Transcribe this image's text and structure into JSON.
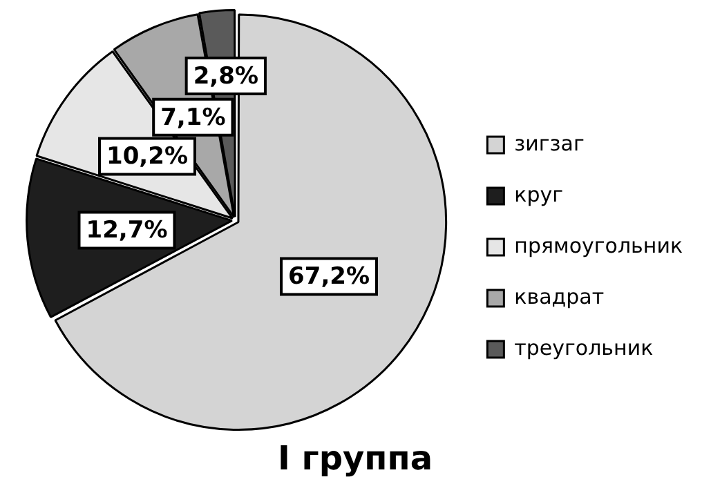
{
  "chart_data": {
    "type": "pie",
    "title": "I группа",
    "categories": [
      "зигзаг",
      "круг",
      "прямоугольник",
      "квадрат",
      "треугольник"
    ],
    "values": [
      67.2,
      12.7,
      10.2,
      7.1,
      2.8
    ],
    "value_labels": [
      "67,2%",
      "12,7%",
      "10,2%",
      "7,1%",
      "2,8%"
    ],
    "colors": [
      "#d4d4d4",
      "#1e1e1e",
      "#e6e6e6",
      "#a8a8a8",
      "#5a5a5a"
    ],
    "legend": "right"
  }
}
